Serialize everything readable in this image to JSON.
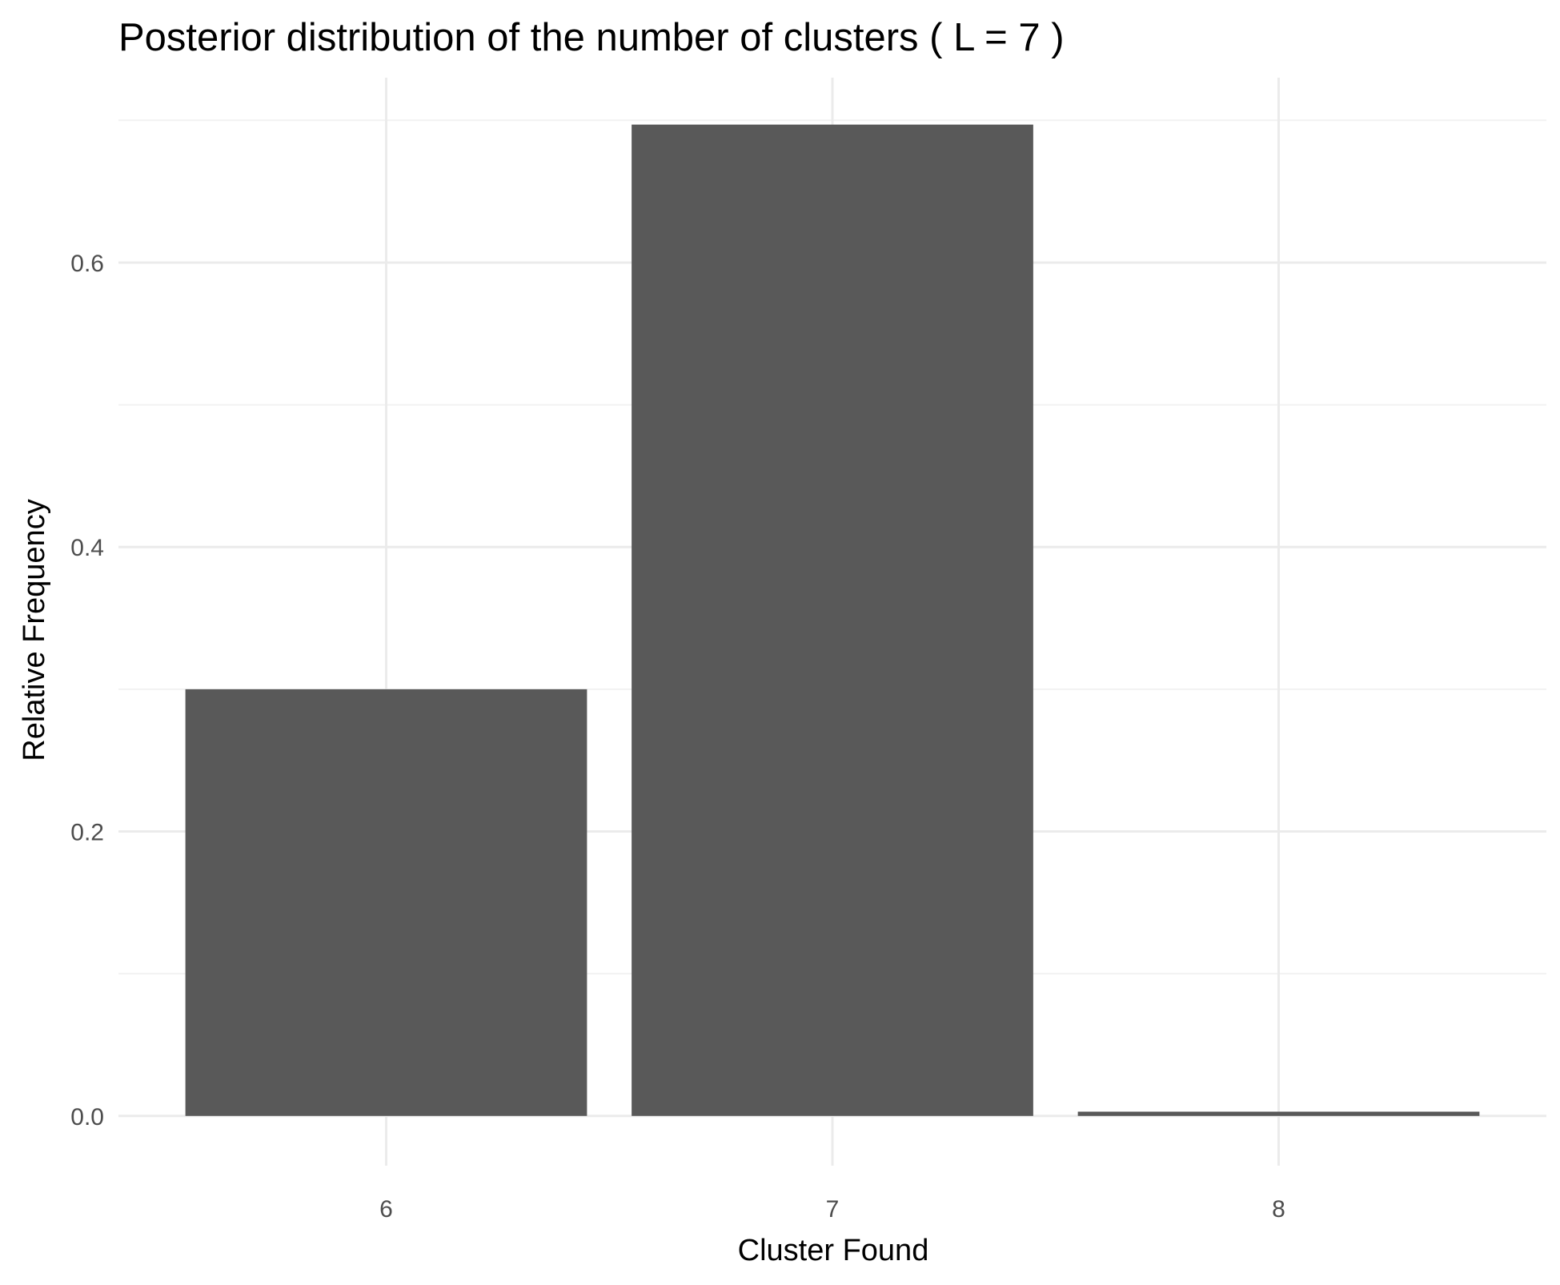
{
  "chart_data": {
    "type": "bar",
    "title": "Posterior distribution of the number of clusters ( L = 7 )",
    "xlabel": "Cluster Found",
    "ylabel": "Relative Frequency",
    "categories": [
      "6",
      "7",
      "8"
    ],
    "values": [
      0.3,
      0.697,
      0.003
    ],
    "yticks": [
      "0.0",
      "0.2",
      "0.4",
      "0.6"
    ],
    "ytick_values": [
      0.0,
      0.2,
      0.4,
      0.6
    ],
    "ylim": [
      -0.035,
      0.73
    ],
    "grid": true,
    "legend": "none",
    "colors": {
      "bar": "#595959",
      "grid_major": "#ebebeb",
      "grid_minor": "#f2f2f2",
      "background": "#ffffff"
    }
  }
}
